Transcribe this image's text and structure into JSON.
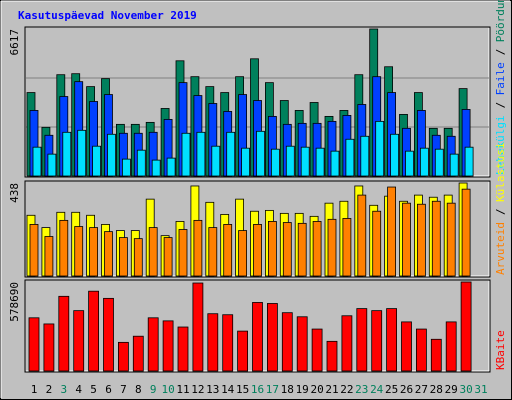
{
  "chart_data": {
    "type": "bar",
    "title": "Kasutuspäevad November 2019",
    "categories": [
      "1",
      "2",
      "3",
      "4",
      "5",
      "6",
      "7",
      "8",
      "9",
      "10",
      "11",
      "12",
      "13",
      "14",
      "15",
      "16",
      "17",
      "18",
      "19",
      "20",
      "21",
      "22",
      "23",
      "24",
      "25",
      "26",
      "27",
      "28",
      "29",
      "30",
      "31"
    ],
    "category_colors": [
      "#000000",
      "#000000",
      "#00805c",
      "#000000",
      "#000000",
      "#000000",
      "#000000",
      "#000000",
      "#00805c",
      "#00805c",
      "#000000",
      "#000000",
      "#000000",
      "#000000",
      "#000000",
      "#00805c",
      "#00805c",
      "#000000",
      "#000000",
      "#000000",
      "#000000",
      "#000000",
      "#00805c",
      "#00805c",
      "#000000",
      "#000000",
      "#000000",
      "#000000",
      "#000000",
      "#00805c",
      "#00805c"
    ],
    "panels": [
      {
        "ylim": [
          0,
          6617
        ],
        "yticks": [
          6617
        ],
        "series": [
          {
            "name": "Pöördumisi",
            "color": "#00805c",
            "values": [
              3756,
              2191,
              4560,
              4605,
              4024,
              4382,
              2325,
              2325,
              2414,
              3040,
              5186,
              4471,
              4024,
              3756,
              4471,
              5276,
              4203,
              3398,
              2951,
              3309,
              2683,
              2951,
              4560,
              6617,
              4918,
              2772,
              3756,
              2146,
              2146,
              3934,
              null
            ]
          },
          {
            "name": "Faile",
            "color": "#0040ff",
            "values": [
              2951,
              1833,
              3577,
              4247,
              3353,
              3666,
              1923,
              1923,
              1967,
              2548,
              4203,
              3621,
              3264,
              2906,
              3666,
              3398,
              2683,
              2325,
              2370,
              2370,
              2459,
              2727,
              3219,
              4471,
              3756,
              2146,
              2951,
              1833,
              1788,
              2996,
              null
            ]
          },
          {
            "name": "Lehekülgi",
            "color": "#00e0ff",
            "values": [
              1297,
              984,
              1967,
              2057,
              1341,
              1878,
              760,
              1162,
              715,
              805,
              1923,
              1967,
              1341,
              1967,
              1252,
              2012,
              1207,
              1341,
              1297,
              1252,
              1118,
              1654,
              1788,
              2459,
              1878,
              1118,
              1252,
              1207,
              984,
              1297,
              null
            ]
          }
        ]
      },
      {
        "ylim": [
          0,
          438
        ],
        "yticks": [
          438
        ],
        "series": [
          {
            "name": "Külastusi",
            "color": "#ffff00",
            "values": [
              286,
              228,
              300,
              300,
              286,
              243,
              214,
              214,
              362,
              190,
              257,
              424,
              347,
              290,
              362,
              305,
              309,
              295,
              295,
              281,
              343,
              352,
              424,
              333,
              376,
              352,
              381,
              371,
              381,
              438,
              null
            ]
          },
          {
            "name": "Arvuteid",
            "color": "#ff8000",
            "values": [
              243,
              186,
              262,
              233,
              228,
              209,
              181,
              176,
              228,
              181,
              219,
              262,
              228,
              243,
              214,
              243,
              257,
              252,
              248,
              257,
              267,
              271,
              381,
              305,
              419,
              343,
              338,
              352,
              343,
              409,
              null
            ]
          }
        ]
      },
      {
        "ylim": [
          0,
          578690
        ],
        "yticks": [
          578690
        ],
        "series": [
          {
            "name": "KBaite",
            "color": "#ff0000",
            "values": [
              345900,
              306000,
              485600,
              392500,
              518900,
              472300,
              186300,
              226200,
              345900,
              326000,
              286000,
              572100,
              372500,
              365900,
              259400,
              445700,
              439000,
              379200,
              352600,
              272700,
              192900,
              359200,
              405800,
              392500,
              405800,
              319300,
              272700,
              206200,
              319300,
              578690,
              null
            ]
          }
        ]
      }
    ]
  }
}
